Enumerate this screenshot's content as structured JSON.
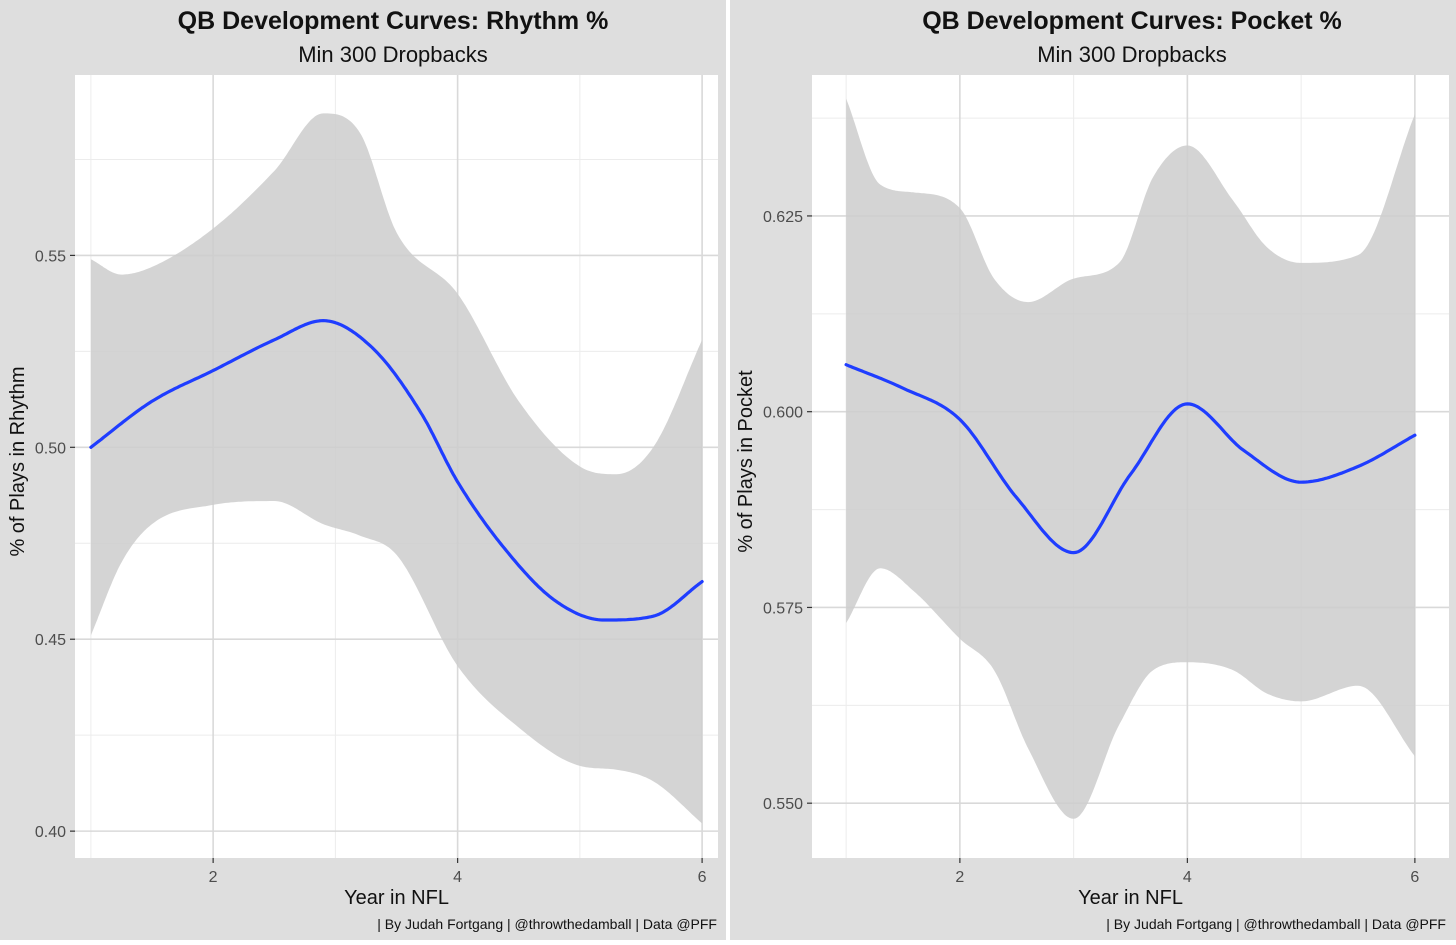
{
  "colors": {
    "panel_bg": "#dedede",
    "plot_bg": "#ffffff",
    "grid": "#d9d9d9",
    "ribbon": "#cccccc",
    "line": "#1f3dff",
    "text": "#111111",
    "tick_text": "#4d4d4d",
    "divider": "#ffffff"
  },
  "chart_data": [
    {
      "type": "line",
      "title": "QB Development Curves: Rhythm %",
      "subtitle": "Min 300 Dropbacks",
      "xlabel": "Year in NFL",
      "ylabel": "% of Plays in Rhythm",
      "caption": "| By Judah Fortgang | @throwthedamball | Data @PFF",
      "xlim": [
        0.87,
        6.13
      ],
      "ylim": [
        0.393,
        0.597
      ],
      "x_ticks": [
        2,
        4,
        6
      ],
      "x_tick_labels": [
        "2",
        "4",
        "6"
      ],
      "y_ticks": [
        0.4,
        0.45,
        0.5,
        0.55
      ],
      "y_tick_labels": [
        "0.40",
        "0.45",
        "0.50",
        "0.55"
      ],
      "grid": true,
      "series": [
        {
          "type": "smooth_line",
          "x": [
            1.0,
            1.5,
            2.0,
            2.5,
            2.9,
            3.3,
            3.7,
            4.0,
            4.4,
            4.8,
            5.2,
            5.6,
            6.0
          ],
          "y": [
            0.5,
            0.512,
            0.52,
            0.528,
            0.533,
            0.526,
            0.509,
            0.491,
            0.473,
            0.46,
            0.455,
            0.456,
            0.465
          ]
        }
      ],
      "confidence_band": {
        "x": [
          1.0,
          1.25,
          1.5,
          2.0,
          2.5,
          2.9,
          3.2,
          3.5,
          4.0,
          4.5,
          5.0,
          5.3,
          5.6,
          6.0
        ],
        "lower": [
          0.451,
          0.47,
          0.48,
          0.485,
          0.486,
          0.48,
          0.477,
          0.472,
          0.443,
          0.427,
          0.417,
          0.416,
          0.413,
          0.402
        ],
        "upper": [
          0.549,
          0.545,
          0.547,
          0.557,
          0.572,
          0.587,
          0.582,
          0.556,
          0.54,
          0.512,
          0.495,
          0.493,
          0.5,
          0.528
        ]
      }
    },
    {
      "type": "line",
      "title": "QB Development Curves: Pocket %",
      "subtitle": "Min 300 Dropbacks",
      "xlabel": "Year in NFL",
      "ylabel": "% of Plays in Pocket",
      "caption": "| By Judah Fortgang | @throwthedamball | Data @PFF",
      "xlim": [
        0.7,
        6.3
      ],
      "ylim": [
        0.543,
        0.643
      ],
      "x_ticks": [
        2,
        4,
        6
      ],
      "x_tick_labels": [
        "2",
        "4",
        "6"
      ],
      "y_ticks": [
        0.55,
        0.575,
        0.6,
        0.625
      ],
      "y_tick_labels": [
        "0.550",
        "0.575",
        "0.600",
        "0.625"
      ],
      "grid": true,
      "series": [
        {
          "type": "smooth_line",
          "x": [
            1.0,
            1.5,
            2.0,
            2.5,
            3.0,
            3.5,
            4.0,
            4.5,
            5.0,
            5.5,
            6.0
          ],
          "y": [
            0.606,
            0.603,
            0.599,
            0.589,
            0.582,
            0.592,
            0.601,
            0.595,
            0.591,
            0.593,
            0.597
          ]
        }
      ],
      "confidence_band": {
        "x": [
          1.0,
          1.3,
          1.6,
          2.0,
          2.3,
          2.6,
          3.0,
          3.4,
          3.7,
          4.0,
          4.4,
          4.7,
          5.0,
          5.5,
          6.0
        ],
        "lower": [
          0.573,
          0.58,
          0.577,
          0.571,
          0.567,
          0.557,
          0.548,
          0.56,
          0.567,
          0.568,
          0.567,
          0.564,
          0.563,
          0.565,
          0.556
        ],
        "upper": [
          0.64,
          0.629,
          0.628,
          0.626,
          0.617,
          0.614,
          0.617,
          0.619,
          0.63,
          0.634,
          0.627,
          0.621,
          0.619,
          0.62,
          0.638
        ]
      }
    }
  ]
}
